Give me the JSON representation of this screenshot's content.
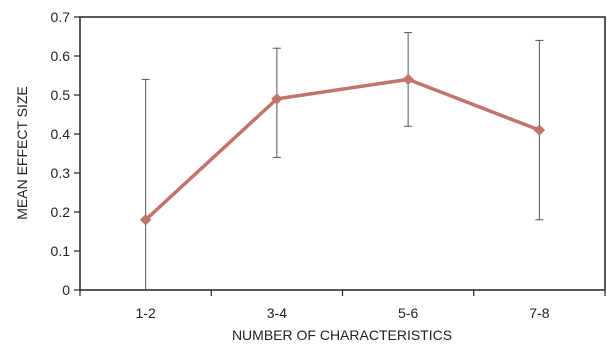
{
  "chart_data": {
    "type": "line",
    "title": "",
    "xlabel": "NUMBER OF CHARACTERISTICS",
    "ylabel": "MEAN EFFECT SIZE",
    "categories": [
      "1-2",
      "3-4",
      "5-6",
      "7-8"
    ],
    "series": [
      {
        "values": [
          0.18,
          0.49,
          0.54,
          0.41
        ],
        "error_low": [
          0.0,
          0.34,
          0.42,
          0.18
        ],
        "error_high": [
          0.54,
          0.62,
          0.66,
          0.64
        ],
        "color": "#c0746c"
      }
    ],
    "ylim": [
      0,
      0.7
    ],
    "yticks": [
      "0",
      "0.1",
      "0.2",
      "0.3",
      "0.4",
      "0.5",
      "0.6",
      "0.7"
    ],
    "grid": false,
    "legend": "none"
  }
}
